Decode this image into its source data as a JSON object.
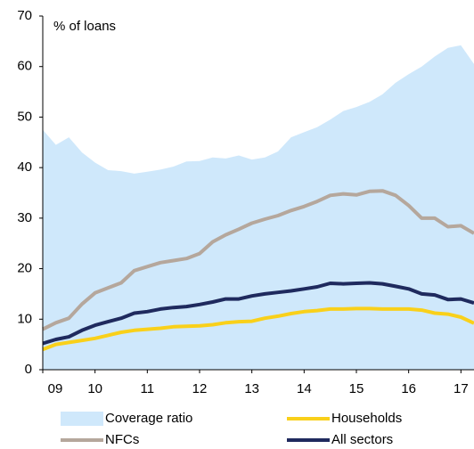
{
  "chart_data": {
    "type": "line",
    "y_axis_label": "% of loans",
    "x": [
      2009,
      2009.25,
      2009.5,
      2009.75,
      2010,
      2010.25,
      2010.5,
      2010.75,
      2011,
      2011.25,
      2011.5,
      2011.75,
      2012,
      2012.25,
      2012.5,
      2012.75,
      2013,
      2013.25,
      2013.5,
      2013.75,
      2014,
      2014.25,
      2014.5,
      2014.75,
      2015,
      2015.25,
      2015.5,
      2015.75,
      2016,
      2016.25,
      2016.5,
      2016.75,
      2017,
      2017.25
    ],
    "series": [
      {
        "name": "Coverage ratio",
        "color": "#cfe8fb",
        "style": "area",
        "values": [
          47.5,
          44.5,
          46,
          43,
          41,
          39.5,
          39.3,
          38.8,
          39.2,
          39.6,
          40.2,
          41.2,
          41.3,
          42,
          41.8,
          42.4,
          41.6,
          42,
          43.2,
          46,
          47,
          48,
          49.5,
          51.2,
          52,
          53,
          54.5,
          56.8,
          58.5,
          60,
          62,
          63.7,
          64.2,
          60.5
        ]
      },
      {
        "name": "Households",
        "color": "#f9d01a",
        "style": "line",
        "values": [
          4,
          5,
          5.4,
          5.8,
          6.2,
          6.8,
          7.4,
          7.8,
          8,
          8.2,
          8.5,
          8.6,
          8.7,
          8.9,
          9.3,
          9.5,
          9.6,
          10.2,
          10.6,
          11.1,
          11.5,
          11.7,
          12,
          12,
          12.1,
          12.1,
          12,
          12,
          12,
          11.8,
          11.2,
          11,
          10.4,
          9.2
        ]
      },
      {
        "name": "NFCs",
        "color": "#b5a79c",
        "style": "line",
        "values": [
          8,
          9.3,
          10.2,
          13,
          15.2,
          16.2,
          17.2,
          19.6,
          20.4,
          21.2,
          21.6,
          22,
          23,
          25.3,
          26.7,
          27.8,
          29,
          29.8,
          30.5,
          31.5,
          32.3,
          33.3,
          34.5,
          34.8,
          34.6,
          35.3,
          35.4,
          34.5,
          32.5,
          30,
          30,
          28.3,
          28.5,
          27
        ]
      },
      {
        "name": "All sectors",
        "color": "#1f2a5e",
        "style": "line",
        "values": [
          5.2,
          6,
          6.5,
          7.8,
          8.8,
          9.5,
          10.2,
          11.2,
          11.5,
          12,
          12.3,
          12.5,
          12.9,
          13.4,
          14,
          14,
          14.6,
          15,
          15.3,
          15.6,
          16,
          16.4,
          17.1,
          17,
          17.1,
          17.2,
          17,
          16.5,
          16,
          15,
          14.8,
          13.9,
          14,
          13.2
        ]
      }
    ],
    "xlim": [
      2009,
      2017.25
    ],
    "xticks": [
      {
        "value": 2009,
        "label": "09"
      },
      {
        "value": 2010,
        "label": "10"
      },
      {
        "value": 2011,
        "label": "11"
      },
      {
        "value": 2012,
        "label": "12"
      },
      {
        "value": 2013,
        "label": "13"
      },
      {
        "value": 2014,
        "label": "14"
      },
      {
        "value": 2015,
        "label": "15"
      },
      {
        "value": 2016,
        "label": "16"
      },
      {
        "value": 2017,
        "label": "17"
      }
    ],
    "ylim": [
      0,
      70
    ],
    "yticks": [
      0,
      10,
      20,
      30,
      40,
      50,
      60,
      70
    ]
  }
}
